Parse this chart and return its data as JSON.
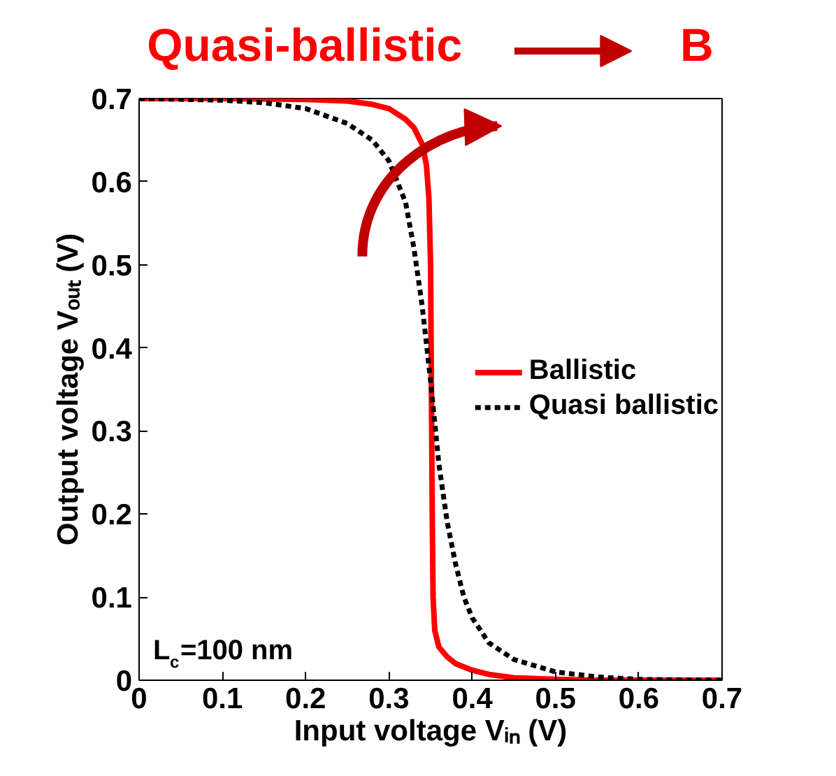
{
  "chart_data": {
    "type": "line",
    "title": "Quasi-ballistic",
    "xlabel": "Input voltage Vᵢₙ (V)",
    "ylabel": "Output voltage Vₒᵤₜ (V)",
    "xlim": [
      0,
      0.7
    ],
    "ylim": [
      0,
      0.7
    ],
    "xticks": [
      0,
      0.1,
      0.2,
      0.3,
      0.4,
      0.5,
      0.6,
      0.7
    ],
    "yticks": [
      0,
      0.1,
      0.2,
      0.3,
      0.4,
      0.5,
      0.6,
      0.7
    ],
    "grid": false,
    "legend": "right",
    "annotations": [
      "L$_{c}$=100 nm",
      "B"
    ],
    "series": [
      {
        "name": "Ballistic",
        "color": "#ff0000",
        "line_style": "solid",
        "x": [
          0,
          0.1,
          0.2,
          0.25,
          0.28,
          0.3,
          0.32,
          0.33,
          0.34,
          0.345,
          0.348,
          0.35,
          0.351,
          0.352,
          0.353,
          0.355,
          0.36,
          0.37,
          0.38,
          0.4,
          0.42,
          0.45,
          0.5,
          0.55,
          0.6,
          0.7
        ],
        "values": [
          0.7,
          0.7,
          0.699,
          0.697,
          0.693,
          0.688,
          0.675,
          0.665,
          0.645,
          0.62,
          0.58,
          0.5,
          0.35,
          0.2,
          0.1,
          0.06,
          0.04,
          0.028,
          0.02,
          0.012,
          0.007,
          0.003,
          0.001,
          0,
          0,
          0
        ]
      },
      {
        "name": "Quasi ballistic",
        "color": "#000000",
        "line_style": "dashed",
        "x": [
          0,
          0.1,
          0.15,
          0.2,
          0.25,
          0.28,
          0.3,
          0.32,
          0.33,
          0.34,
          0.35,
          0.36,
          0.37,
          0.38,
          0.39,
          0.4,
          0.42,
          0.45,
          0.5,
          0.55,
          0.6,
          0.7
        ],
        "values": [
          0.7,
          0.698,
          0.695,
          0.688,
          0.67,
          0.65,
          0.625,
          0.575,
          0.52,
          0.45,
          0.36,
          0.26,
          0.19,
          0.14,
          0.1,
          0.075,
          0.045,
          0.025,
          0.01,
          0.004,
          0.001,
          0
        ]
      }
    ]
  }
}
